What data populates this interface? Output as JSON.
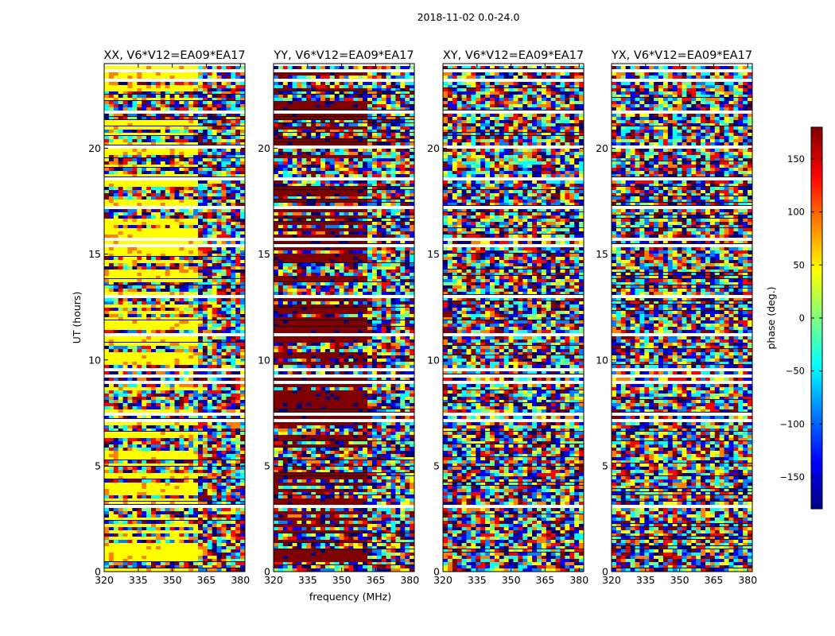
{
  "chart_data": {
    "type": "heatmap",
    "suptitle": "2018-11-02 0.0-24.0",
    "xlabel": "frequency (MHz)",
    "ylabel": "UT (hours)",
    "xlim": [
      320,
      382
    ],
    "ylim": [
      0,
      24
    ],
    "xticks": [
      320,
      335,
      350,
      365,
      380
    ],
    "yticks": [
      0,
      5,
      10,
      15,
      20
    ],
    "colorbar": {
      "label": "phase (deg.)",
      "range": [
        -180,
        180
      ],
      "ticks": [
        150,
        100,
        50,
        0,
        -50,
        -100,
        -150
      ],
      "tick_labels": [
        "150",
        "100",
        "50",
        "0",
        "−50",
        "−100",
        "−150"
      ],
      "colormap": [
        "#00007f",
        "#0000ff",
        "#007fff",
        "#00ffff",
        "#7fff7f",
        "#ffff00",
        "#ff7f00",
        "#ff0000",
        "#7f0000"
      ]
    },
    "panels": [
      {
        "title": "XX, V6*V12=EA09*EA17",
        "pol": "XX",
        "show_ylabel": true,
        "show_xlabel": false
      },
      {
        "title": "YY, V6*V12=EA09*EA17",
        "pol": "YY",
        "show_ylabel": false,
        "show_xlabel": true
      },
      {
        "title": "XY, V6*V12=EA09*EA17",
        "pol": "XY",
        "show_ylabel": false,
        "show_xlabel": false
      },
      {
        "title": "YX, V6*V12=EA09*EA17",
        "pol": "YX",
        "show_ylabel": false,
        "show_xlabel": false
      }
    ]
  }
}
